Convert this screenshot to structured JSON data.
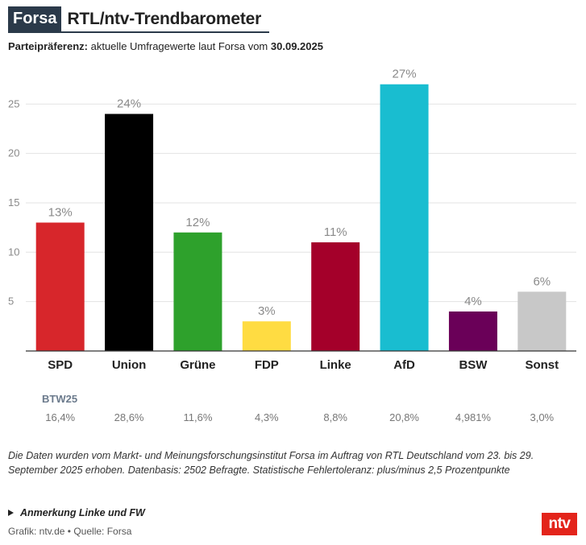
{
  "header": {
    "badge": "Forsa",
    "title": "RTL/ntv-Trendbarometer"
  },
  "subtitle": {
    "label": "Parteipräferenz:",
    "text": "aktuelle Umfragewerte laut Forsa vom",
    "date": "30.09.2025"
  },
  "chart_data": {
    "type": "bar",
    "title": "RTL/ntv-Trendbarometer",
    "categories": [
      "SPD",
      "Union",
      "Grüne",
      "FDP",
      "Linke",
      "AfD",
      "BSW",
      "Sonst"
    ],
    "values": [
      13,
      24,
      12,
      3,
      11,
      27,
      4,
      6
    ],
    "value_labels": [
      "13%",
      "24%",
      "12%",
      "3%",
      "11%",
      "27%",
      "4%",
      "6%"
    ],
    "colors": [
      "#d7262b",
      "#000000",
      "#2ea12c",
      "#ffdc42",
      "#a4002a",
      "#19bdd0",
      "#6a0058",
      "#c8c8c8"
    ],
    "yticks": [
      5,
      10,
      15,
      20,
      25
    ],
    "ylim": [
      0,
      30
    ],
    "grid": true,
    "xlabel": "",
    "ylabel": ""
  },
  "btw": {
    "label": "BTW25",
    "values": [
      "16,4%",
      "28,6%",
      "11,6%",
      "4,3%",
      "8,8%",
      "20,8%",
      "4,981%",
      "3,0%"
    ]
  },
  "note": "Die Daten wurden vom Markt- und Meinungsforschungsinstitut Forsa im Auftrag von RTL Deutschland vom 23. bis 29. September 2025 erhoben. Datenbasis: 2502 Befragte. Statistische Fehlertoleranz: plus/minus 2,5 Prozentpunkte",
  "footnote": "Anmerkung Linke und FW",
  "credit": "Grafik: ntv.de • Quelle: Forsa",
  "logo": "ntv"
}
